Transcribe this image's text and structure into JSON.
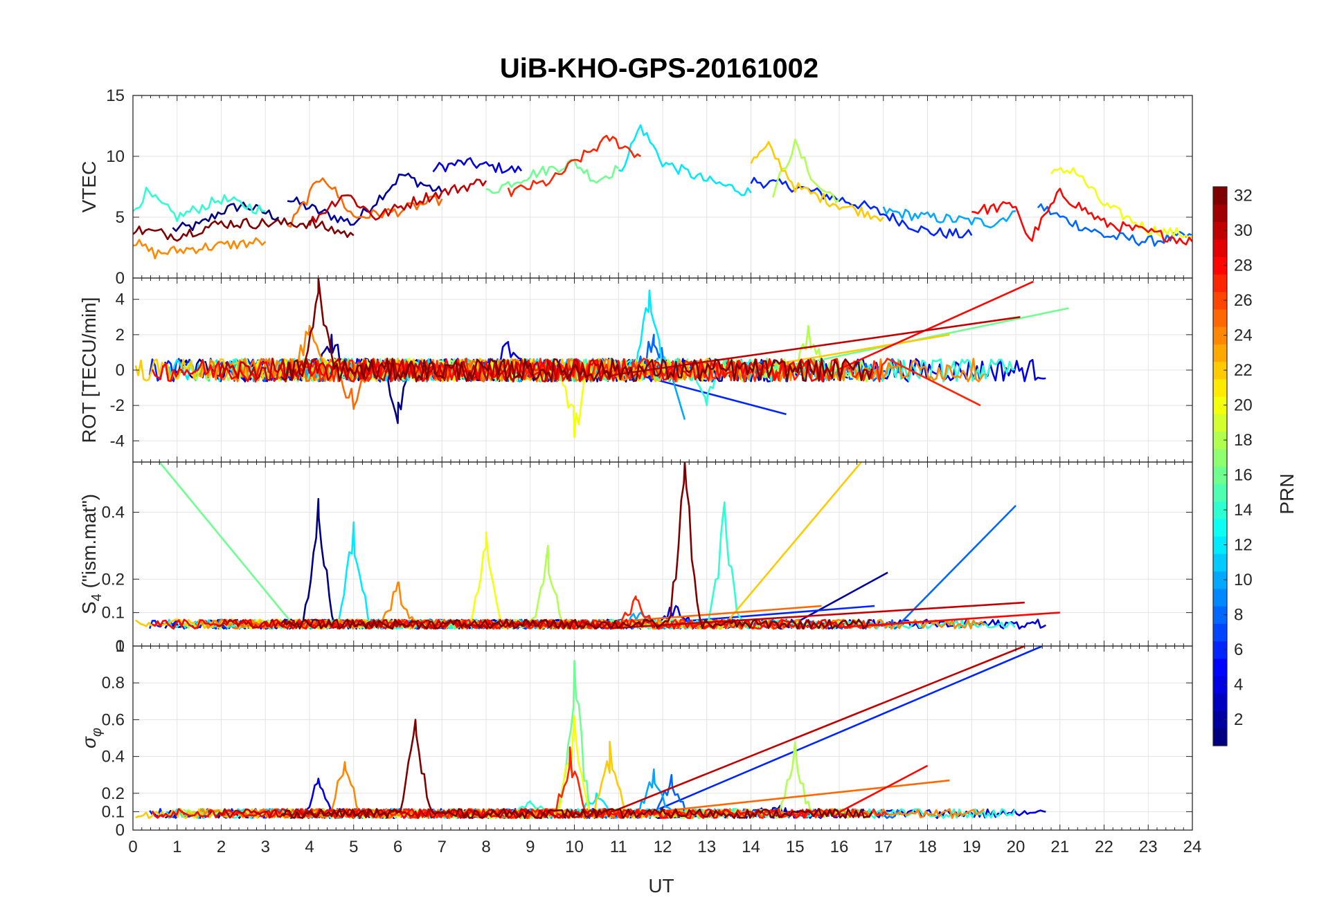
{
  "chart_data": {
    "type": "line",
    "title": "UiB-KHO-GPS-20161002",
    "xlabel": "UT",
    "xlim": [
      0,
      24
    ],
    "x_ticks": [
      "0",
      "1",
      "2",
      "3",
      "4",
      "5",
      "6",
      "7",
      "8",
      "9",
      "10",
      "11",
      "12",
      "13",
      "14",
      "15",
      "16",
      "17",
      "18",
      "19",
      "20",
      "21",
      "22",
      "23",
      "24"
    ],
    "grid": true,
    "panels": [
      {
        "id": "vtec",
        "ylabel": "VTEC",
        "ylim": [
          0,
          15
        ],
        "y_ticks": [
          "0",
          "5",
          "10",
          "15"
        ],
        "baseline": 4
      },
      {
        "id": "rot",
        "ylabel": "ROT [TECU/min]",
        "ylim": [
          -5.2,
          5.2
        ],
        "y_ticks": [
          "-4",
          "-2",
          "0",
          "2",
          "4"
        ],
        "baseline": 0
      },
      {
        "id": "s4",
        "ylabel": "S",
        "ylabel_sub": "4",
        "ylabel_suffix": " (\"ism.mat\")",
        "ylim": [
          0,
          0.55
        ],
        "y_ticks": [
          "0",
          "0.1",
          "0.2",
          "0.4"
        ],
        "baseline": 0.06
      },
      {
        "id": "sigma",
        "ylabel": "σ",
        "ylabel_sub": "φ",
        "ylim": [
          0,
          1
        ],
        "y_ticks": [
          "0",
          "0.1",
          "0.2",
          "0.4",
          "0.6",
          "0.8",
          "1"
        ],
        "baseline": 0.08
      }
    ],
    "colorbar": {
      "label": "PRN",
      "range": [
        1,
        32
      ],
      "ticks": [
        "2",
        "4",
        "6",
        "8",
        "10",
        "12",
        "14",
        "16",
        "18",
        "20",
        "22",
        "24",
        "26",
        "28",
        "30",
        "32"
      ],
      "colormap": "jet"
    },
    "series": [
      {
        "prn": 1,
        "vtec": [
          [
            0.9,
            4.0
          ],
          [
            1.5,
            4.3
          ],
          [
            2.0,
            5.5
          ],
          [
            2.5,
            6.0
          ],
          [
            3.3,
            5.0
          ]
        ],
        "rot_spike": [
          6.0,
          -3.0
        ],
        "s4_peak": [
          4.2,
          0.44
        ],
        "sig_peak": [
          15.0,
          0.1
        ]
      },
      {
        "prn": 2,
        "vtec": [
          [
            3.5,
            6.5
          ],
          [
            4.2,
            5.5
          ],
          [
            5.0,
            4.5
          ],
          [
            6.1,
            8.5
          ],
          [
            7.0,
            7.0
          ]
        ],
        "rot_spike": [
          4.5,
          2.0
        ],
        "s4_peak": [
          17.1,
          0.22
        ],
        "sig_peak": [
          14.5,
          0.12
        ]
      },
      {
        "prn": 4,
        "vtec": [
          [
            6.8,
            9.0
          ],
          [
            7.5,
            9.5
          ],
          [
            8.0,
            9.2
          ],
          [
            8.8,
            8.8
          ]
        ],
        "rot_spike": [
          8.5,
          1.5
        ],
        "s4_peak": [
          12.3,
          0.12
        ],
        "sig_peak": [
          4.2,
          0.28
        ]
      },
      {
        "prn": 6,
        "vtec": [
          [
            14.0,
            8.0
          ],
          [
            15.0,
            7.5
          ],
          [
            16.5,
            6.0
          ],
          [
            18.0,
            3.8
          ],
          [
            19.0,
            3.5
          ]
        ],
        "rot_spike": [
          14.8,
          -2.5
        ],
        "s4_peak": [
          16.8,
          0.12
        ],
        "sig_peak": [
          20.6,
          1.0
        ]
      },
      {
        "prn": 8,
        "vtec": [
          [
            20.5,
            6.0
          ],
          [
            21.0,
            5.0
          ],
          [
            22.0,
            3.5
          ],
          [
            23.0,
            3.0
          ],
          [
            24.0,
            3.5
          ]
        ],
        "rot_spike": [
          11.8,
          2.0
        ],
        "s4_peak": [
          20.0,
          0.42
        ],
        "sig_peak": [
          12.2,
          0.3
        ]
      },
      {
        "prn": 10,
        "vtec": [
          [
            17.0,
            5.5
          ],
          [
            18.0,
            5.0
          ],
          [
            19.5,
            4.5
          ],
          [
            20.0,
            5.5
          ]
        ],
        "rot_spike": [
          12.5,
          -2.8
        ],
        "s4_peak": [
          11.5,
          0.1
        ],
        "sig_peak": [
          11.8,
          0.33
        ]
      },
      {
        "prn": 12,
        "vtec": [
          [
            11.0,
            8.5
          ],
          [
            11.5,
            12.5
          ],
          [
            12.0,
            9.5
          ],
          [
            13.0,
            8.0
          ],
          [
            14.0,
            7.0
          ]
        ],
        "rot_spike": [
          11.7,
          4.5
        ],
        "s4_peak": [
          5.0,
          0.37
        ],
        "sig_peak": [
          10.5,
          0.2
        ]
      },
      {
        "prn": 14,
        "vtec": [
          [
            0.0,
            5.5
          ],
          [
            0.3,
            7.0
          ],
          [
            1.0,
            5.0
          ],
          [
            2.0,
            6.5
          ],
          [
            3.0,
            5.5
          ]
        ],
        "rot_spike": [
          13.0,
          -2.0
        ],
        "s4_peak": [
          13.4,
          0.43
        ],
        "sig_peak": [
          9.0,
          0.15
        ]
      },
      {
        "prn": 16,
        "vtec": [
          [
            8.0,
            7.0
          ],
          [
            9.0,
            8.5
          ],
          [
            10.0,
            9.5
          ],
          [
            10.5,
            8.0
          ],
          [
            11.0,
            9.0
          ]
        ],
        "rot_spike": [
          21.2,
          3.5
        ],
        "s4_peak": [
          0.6,
          0.55
        ],
        "sig_peak": [
          10.0,
          0.92
        ]
      },
      {
        "prn": 18,
        "vtec": [
          [
            14.5,
            7.0
          ],
          [
            15.0,
            11.0
          ],
          [
            15.5,
            7.5
          ],
          [
            16.0,
            6.5
          ]
        ],
        "rot_spike": [
          15.3,
          2.5
        ],
        "s4_peak": [
          9.4,
          0.3
        ],
        "sig_peak": [
          15.0,
          0.48
        ]
      },
      {
        "prn": 20,
        "vtec": [
          [
            20.8,
            8.5
          ],
          [
            21.3,
            9.0
          ],
          [
            22.0,
            6.0
          ],
          [
            23.0,
            4.0
          ],
          [
            24.0,
            3.5
          ]
        ],
        "rot_spike": [
          10.0,
          -3.8
        ],
        "s4_peak": [
          8.0,
          0.34
        ],
        "sig_peak": [
          10.0,
          0.62
        ]
      },
      {
        "prn": 22,
        "vtec": [
          [
            14.0,
            9.5
          ],
          [
            14.4,
            10.8
          ],
          [
            15.0,
            7.5
          ],
          [
            16.0,
            6.0
          ],
          [
            17.0,
            5.0
          ]
        ],
        "rot_spike": [
          18.5,
          2.0
        ],
        "s4_peak": [
          16.5,
          0.55
        ],
        "sig_peak": [
          10.8,
          0.48
        ]
      },
      {
        "prn": 24,
        "vtec": [
          [
            0.0,
            3.0
          ],
          [
            0.5,
            2.0
          ],
          [
            1.5,
            2.5
          ],
          [
            3.0,
            3.0
          ]
        ],
        "rot_spike": [
          4.0,
          2.5
        ],
        "s4_peak": [
          6.0,
          0.19
        ],
        "sig_peak": [
          4.8,
          0.37
        ]
      },
      {
        "prn": 25,
        "vtec": [
          [
            3.5,
            4.0
          ],
          [
            4.3,
            8.5
          ],
          [
            5.0,
            5.0
          ],
          [
            6.0,
            5.5
          ],
          [
            7.0,
            6.5
          ]
        ],
        "rot_spike": [
          5.0,
          -2.2
        ],
        "s4_peak": [
          15.6,
          0.12
        ],
        "sig_peak": [
          18.5,
          0.27
        ]
      },
      {
        "prn": 27,
        "vtec": [
          [
            8.5,
            7.0
          ],
          [
            9.5,
            8.0
          ],
          [
            10.0,
            9.5
          ],
          [
            10.8,
            11.5
          ],
          [
            11.5,
            10.0
          ]
        ],
        "rot_spike": [
          19.2,
          -2.0
        ],
        "s4_peak": [
          11.4,
          0.14
        ],
        "sig_peak": [
          9.9,
          0.45
        ]
      },
      {
        "prn": 28,
        "vtec": [
          [
            19.0,
            5.5
          ],
          [
            20.0,
            6.0
          ],
          [
            20.3,
            3.0
          ],
          [
            21.0,
            7.0
          ],
          [
            22.0,
            4.5
          ],
          [
            24.0,
            3.0
          ]
        ],
        "rot_spike": [
          20.4,
          5.0
        ],
        "s4_peak": [
          21.0,
          0.1
        ],
        "sig_peak": [
          18.0,
          0.35
        ]
      },
      {
        "prn": 30,
        "vtec": [
          [
            4.0,
            4.5
          ],
          [
            4.8,
            7.0
          ],
          [
            5.5,
            5.0
          ],
          [
            6.5,
            6.5
          ],
          [
            8.0,
            8.0
          ]
        ],
        "rot_spike": [
          20.1,
          3.0
        ],
        "s4_peak": [
          20.2,
          0.13
        ],
        "sig_peak": [
          20.2,
          1.0
        ]
      },
      {
        "prn": 32,
        "vtec": [
          [
            0.0,
            4.0
          ],
          [
            1.0,
            3.5
          ],
          [
            2.0,
            4.5
          ],
          [
            4.0,
            4.5
          ],
          [
            5.0,
            3.5
          ]
        ],
        "rot_spike": [
          4.2,
          5.2
        ],
        "s4_peak": [
          12.5,
          0.55
        ],
        "sig_peak": [
          6.4,
          0.6
        ]
      }
    ]
  }
}
